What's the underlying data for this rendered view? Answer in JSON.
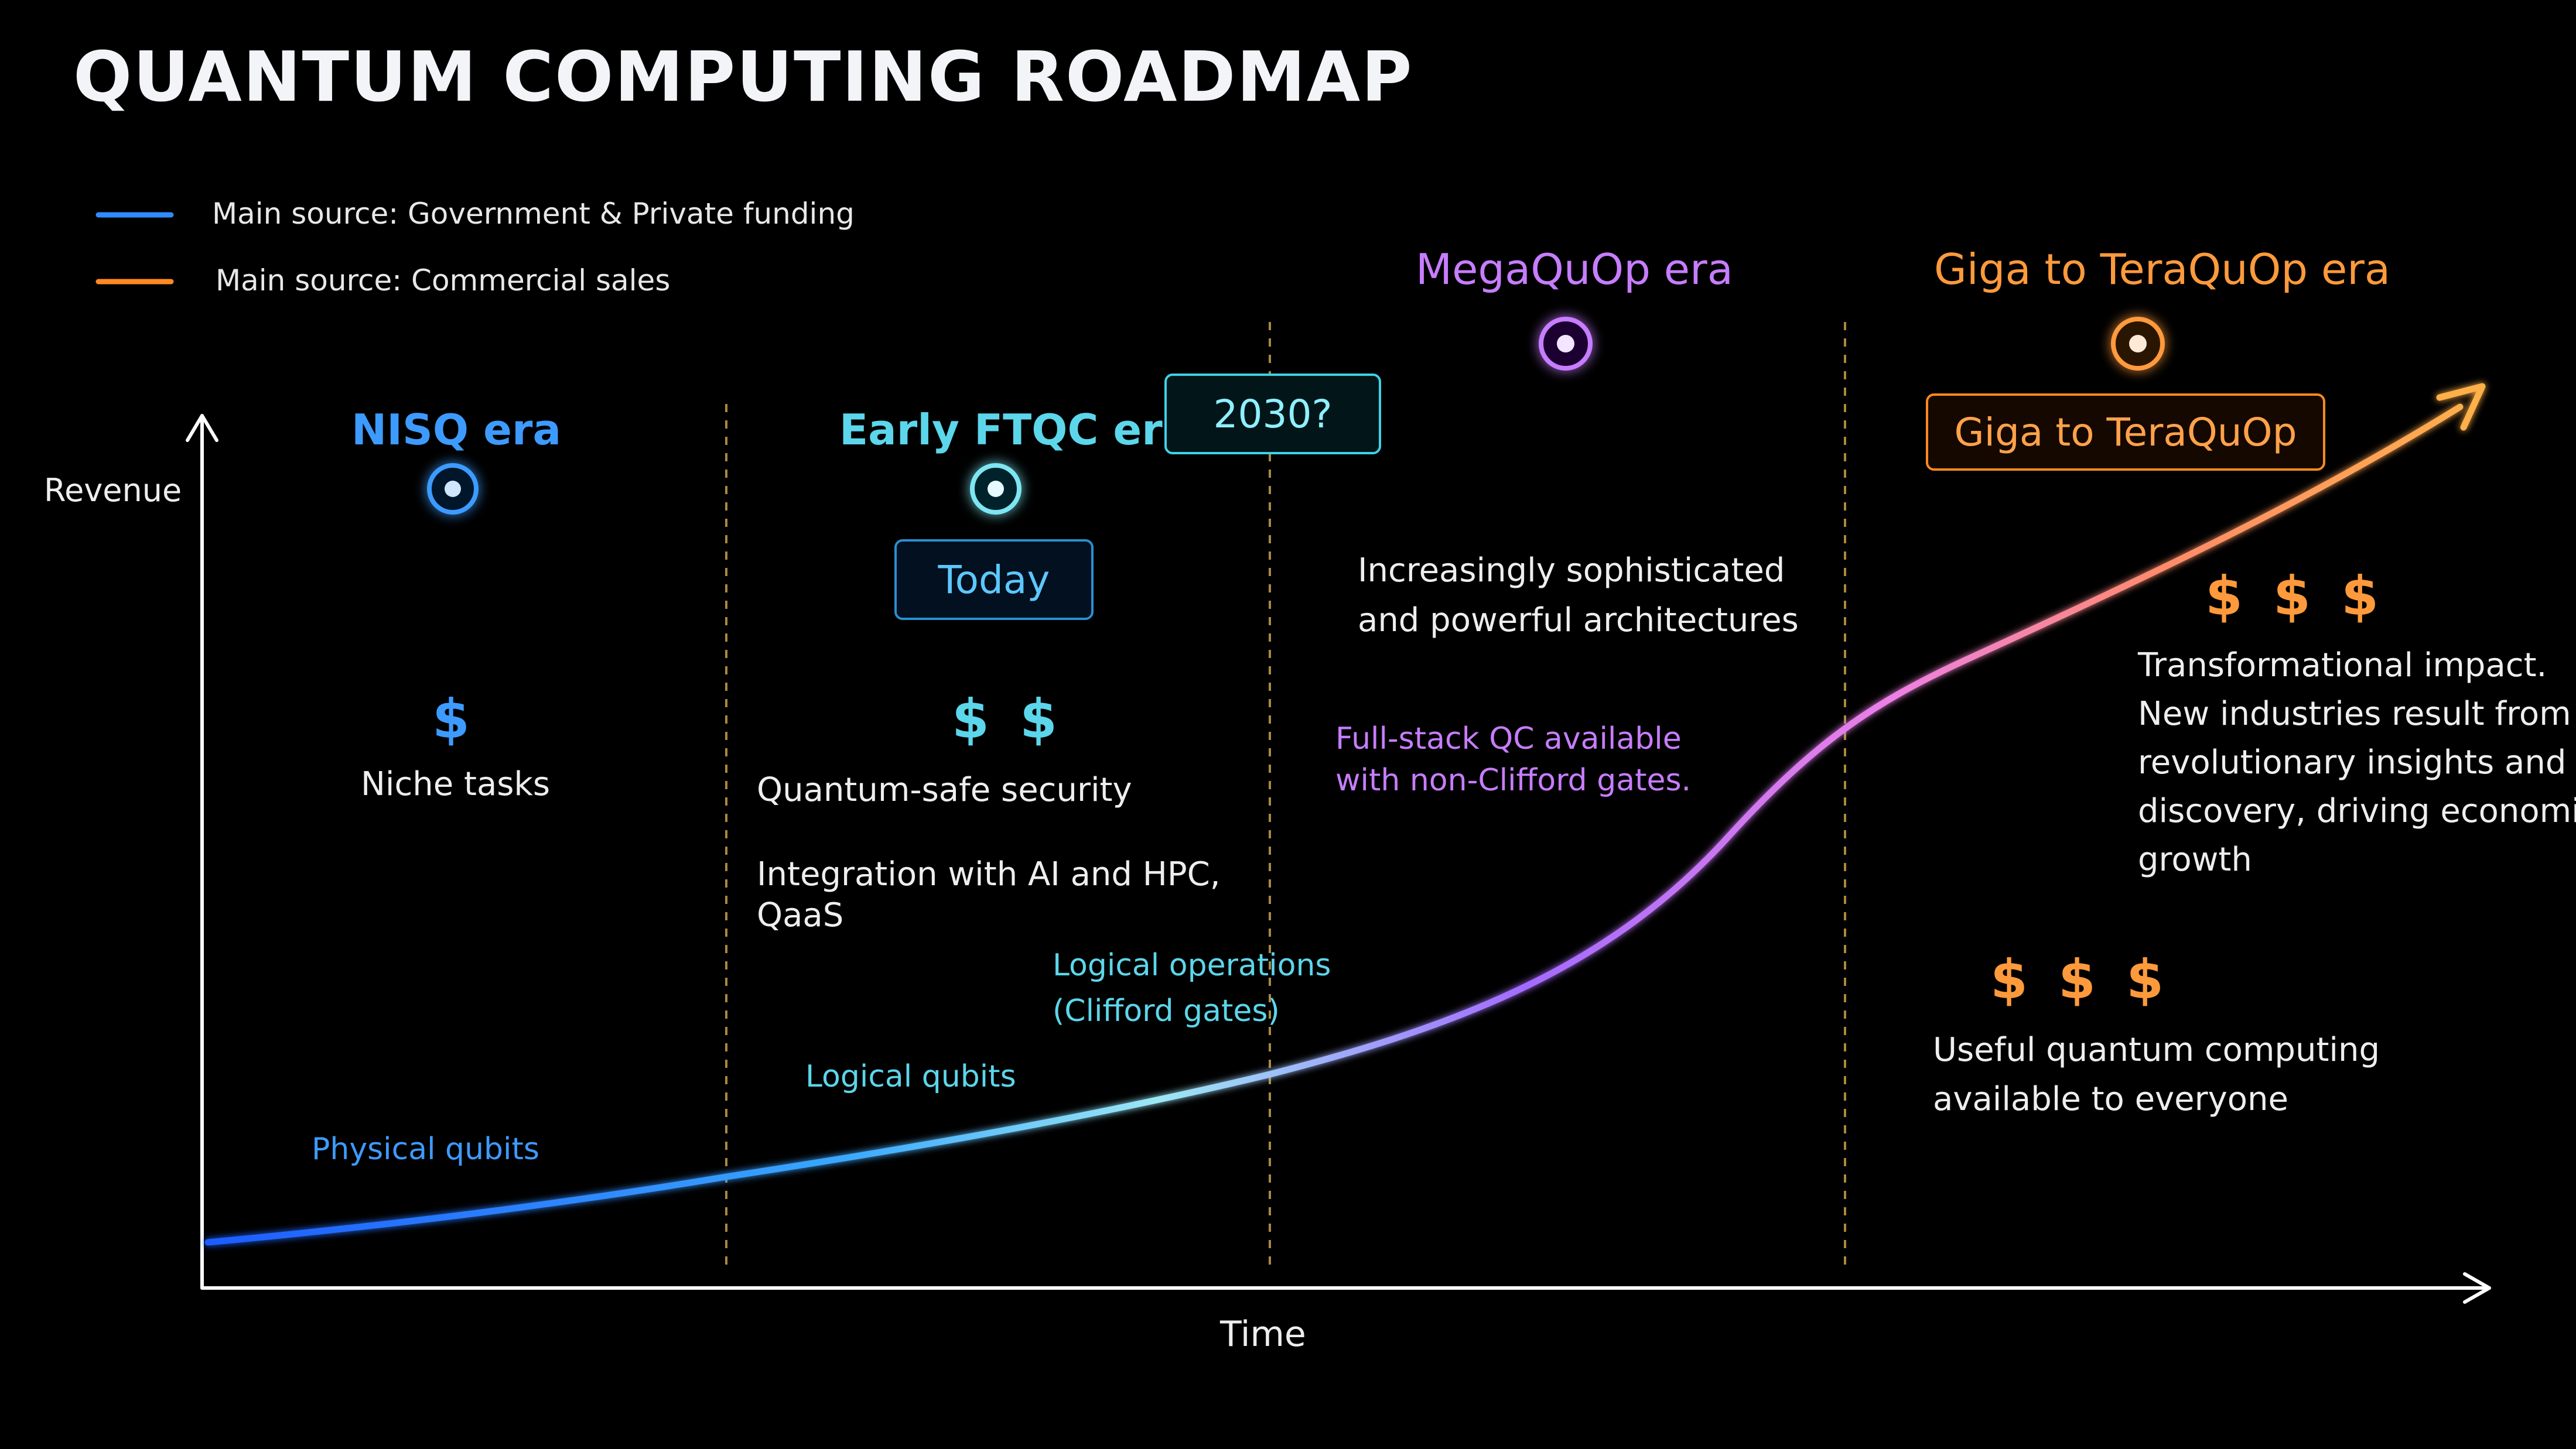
{
  "title": "QUANTUM COMPUTING ROADMAP",
  "legend": [
    {
      "label": "Main source: Government & Private funding",
      "color": "#2f8cff"
    },
    {
      "label": "Main source: Commercial sales",
      "color": "#ff8a1f"
    }
  ],
  "axes": {
    "y_label": "Revenue",
    "x_label": "Time"
  },
  "eras": [
    {
      "name": "NISQ era",
      "color": "#3d9bff"
    },
    {
      "name": "Early FTQC era",
      "color": "#5cd6ea"
    },
    {
      "name": "MegaQuOp era",
      "color": "#c77dff"
    },
    {
      "name": "Giga to TeraQuOp era",
      "color": "#ff9a3c"
    }
  ],
  "badges": {
    "year": "2030?",
    "today": "Today",
    "giga": "Giga to TeraQuOp"
  },
  "nisq": {
    "dollars": "$",
    "text": "Niche tasks"
  },
  "ftqc": {
    "dollars": "$ $",
    "text1": "Quantum-safe security",
    "text2a": "Integration with AI and HPC,",
    "text2b": "QaaS"
  },
  "mega": {
    "text1": "Increasingly sophisticated",
    "text2": "and powerful architectures",
    "purple1": "Full-stack QC available",
    "purple2": "with non-Clifford gates."
  },
  "tera": {
    "dollars_top": "$ $ $",
    "lines": [
      "Transformational impact.",
      "New industries result from",
      "revolutionary insights and",
      "discovery, driving economic",
      "growth"
    ],
    "dollars_bottom": "$ $ $",
    "bottom1": "Useful quantum computing",
    "bottom2": "available to everyone"
  },
  "curve_labels": {
    "physical": "Physical qubits",
    "logical": "Logical qubits",
    "ops1": "Logical operations",
    "ops2": "(Clifford gates)"
  }
}
